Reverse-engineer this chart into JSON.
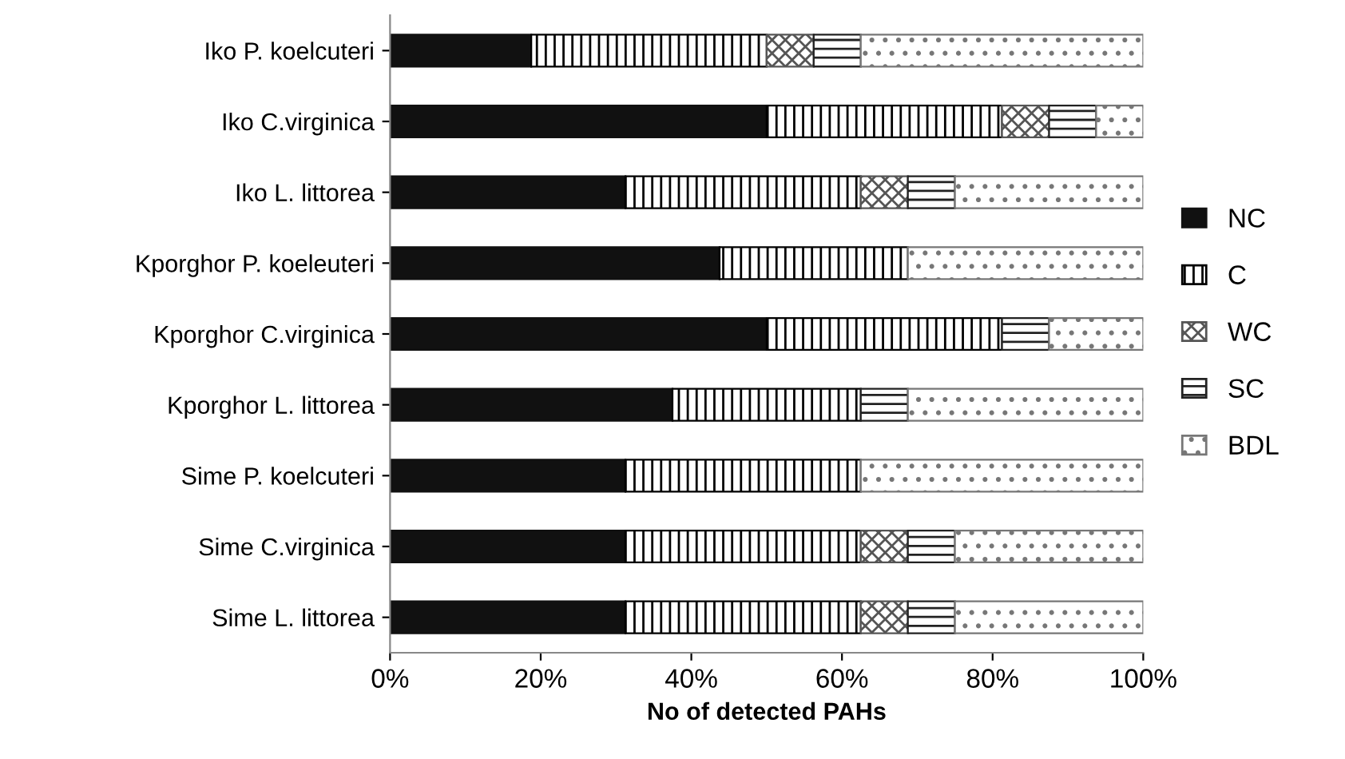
{
  "chart_data": {
    "type": "bar",
    "orientation": "horizontal",
    "stacked": true,
    "xlabel": "No of detected PAHs",
    "categories": [
      "Iko P. koelcuteri",
      "Iko C.virginica",
      "Iko L. littorea",
      "Kporghor P. koeleuteri",
      "Kporghor C.virginica",
      "Kporghor L. littorea",
      "Sime P. koelcuteri",
      "Sime C.virginica",
      "Sime L. littorea"
    ],
    "series": [
      {
        "name": "NC",
        "color": "#111111",
        "values": [
          18.75,
          50,
          31.25,
          43.75,
          50,
          37.5,
          31.25,
          31.25,
          31.25
        ]
      },
      {
        "name": "C",
        "color": "#000000",
        "values": [
          31.25,
          31.25,
          31.25,
          25,
          31.25,
          25,
          31.25,
          31.25,
          31.25
        ]
      },
      {
        "name": "WC",
        "color": "#555555",
        "values": [
          6.25,
          6.25,
          6.25,
          0,
          0,
          0,
          0,
          6.25,
          6.25
        ]
      },
      {
        "name": "SC",
        "color": "#222222",
        "values": [
          6.25,
          6.25,
          6.25,
          0,
          6.25,
          6.25,
          0,
          6.25,
          6.25
        ]
      },
      {
        "name": "BDL",
        "color": "#777777",
        "values": [
          37.5,
          6.25,
          25,
          31.25,
          12.5,
          31.25,
          37.5,
          25,
          25
        ]
      }
    ],
    "xlim": [
      0,
      100
    ],
    "xticks": [
      {
        "value": 0,
        "label": "0%"
      },
      {
        "value": 20,
        "label": "20%"
      },
      {
        "value": 40,
        "label": "40%"
      },
      {
        "value": 60,
        "label": "60%"
      },
      {
        "value": 80,
        "label": "80%"
      },
      {
        "value": 100,
        "label": "100%"
      }
    ],
    "legend": "right",
    "grid": false
  }
}
